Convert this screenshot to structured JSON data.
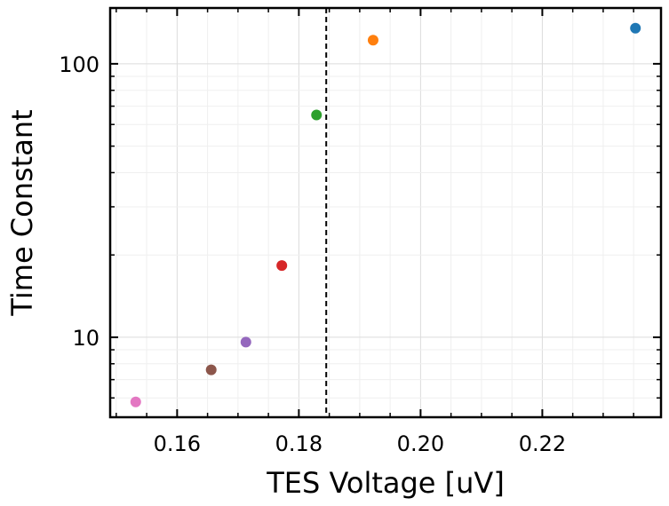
{
  "chart_data": {
    "type": "scatter",
    "xlabel": "TES Voltage [uV]",
    "ylabel": "Time Constant",
    "xlim": [
      0.149,
      0.2395
    ],
    "ylim": [
      5.1,
      160
    ],
    "yscale": "log",
    "grid": true,
    "x_ticks": [
      {
        "value": 0.16,
        "label": "0.16"
      },
      {
        "value": 0.18,
        "label": "0.18"
      },
      {
        "value": 0.2,
        "label": "0.20"
      },
      {
        "value": 0.22,
        "label": "0.22"
      }
    ],
    "y_ticks": [
      {
        "value": 10,
        "label": "10"
      },
      {
        "value": 100,
        "label": "100"
      }
    ],
    "vline": {
      "x": 0.1845,
      "style": "dashed",
      "color": "#000000"
    },
    "points": [
      {
        "x": 0.2353,
        "y": 135,
        "color": "#1f77b4"
      },
      {
        "x": 0.1922,
        "y": 122,
        "color": "#ff7f0e"
      },
      {
        "x": 0.1829,
        "y": 65,
        "color": "#2ca02c"
      },
      {
        "x": 0.1772,
        "y": 18.3,
        "color": "#d62728"
      },
      {
        "x": 0.1713,
        "y": 9.6,
        "color": "#9467bd"
      },
      {
        "x": 0.1656,
        "y": 7.6,
        "color": "#8c564b"
      },
      {
        "x": 0.1532,
        "y": 5.8,
        "color": "#e377c2"
      }
    ]
  }
}
